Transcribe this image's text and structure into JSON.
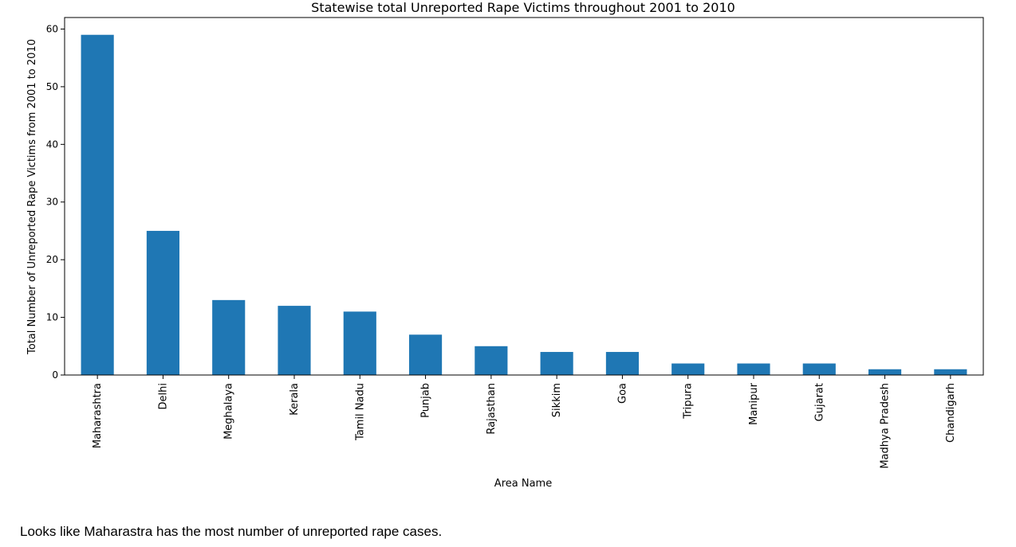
{
  "chart_data": {
    "type": "bar",
    "title": "Statewise total Unreported Rape Victims throughout 2001 to 2010",
    "xlabel": "Area Name",
    "ylabel": "Total Number of Unreported Rape Victims from 2001 to 2010",
    "categories": [
      "Maharashtra",
      "Delhi",
      "Meghalaya",
      "Kerala",
      "Tamil Nadu",
      "Punjab",
      "Rajasthan",
      "Sikkim",
      "Goa",
      "Tripura",
      "Manipur",
      "Gujarat",
      "Madhya Pradesh",
      "Chandigarh"
    ],
    "values": [
      59,
      25,
      13,
      12,
      11,
      7,
      5,
      4,
      4,
      2,
      2,
      2,
      1,
      1
    ],
    "ylim": [
      0,
      62
    ],
    "yticks": [
      0,
      10,
      20,
      30,
      40,
      50,
      60
    ],
    "grid": false,
    "bar_color": "#1f77b4"
  },
  "caption": "Looks like Maharastra has the most number of unreported rape cases."
}
